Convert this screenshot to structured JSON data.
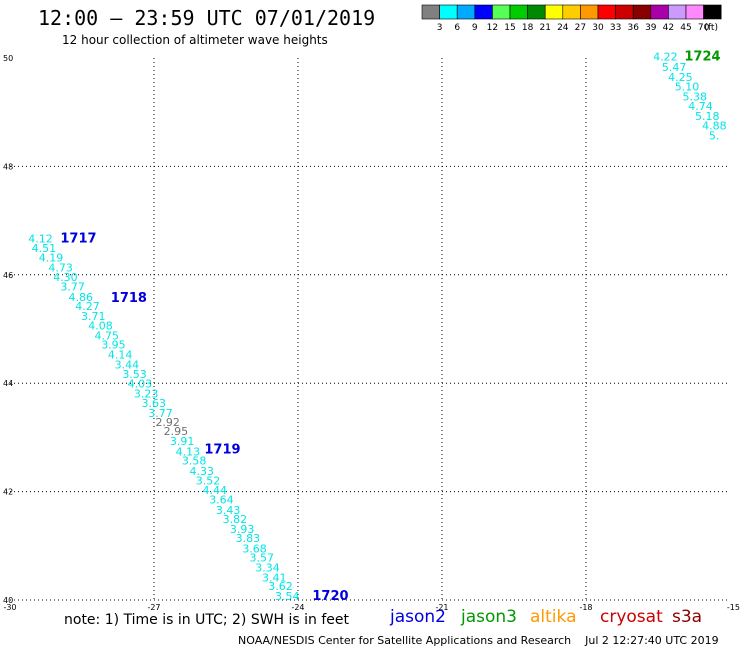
{
  "header": {
    "title": "12:00 — 23:59 UTC 07/01/2019",
    "subtitle": "12 hour collection of altimeter wave heights"
  },
  "legend": {
    "unit": "(ft)",
    "colors": [
      "#808080",
      "#00ffff",
      "#00aaff",
      "#0000ff",
      "#55ff55",
      "#00cc00",
      "#008800",
      "#ffff00",
      "#ffcc00",
      "#ff9900",
      "#ff0000",
      "#cc0000",
      "#880000",
      "#aa00aa",
      "#cc99ff",
      "#ff88ff",
      "#000000"
    ],
    "labels": [
      "3",
      "6",
      "9",
      "12",
      "15",
      "18",
      "21",
      "24",
      "27",
      "30",
      "33",
      "36",
      "39",
      "42",
      "45",
      "70"
    ]
  },
  "satellites": [
    {
      "name": "jason2",
      "color": "#0000dd"
    },
    {
      "name": "jason3",
      "color": "#009900"
    },
    {
      "name": "altika",
      "color": "#ff9900"
    },
    {
      "name": "cryosat",
      "color": "#cc0000"
    },
    {
      "name": "s3a",
      "color": "#880000"
    }
  ],
  "footer": {
    "note": "note:  1) Time is in UTC;  2) SWH is in feet",
    "credit": "NOAA/NESDIS Center for Satellite Applications and Research",
    "timestamp": "Jul  2 12:27:40 UTC 2019"
  },
  "chart_data": {
    "type": "scatter",
    "xlim": [
      -30,
      -15
    ],
    "ylim": [
      40,
      50
    ],
    "xticks": [
      -30,
      -27,
      -24,
      -21,
      -18,
      -15
    ],
    "yticks": [
      40,
      42,
      44,
      46,
      48,
      50
    ],
    "xtick_labels": [
      "-30",
      "-27",
      "-24",
      "-21",
      "-18",
      "-15"
    ],
    "ytick_labels": [
      "40",
      "42",
      "44",
      "46",
      "48",
      "50"
    ],
    "grid": true,
    "times": [
      {
        "label": "1717",
        "x": -28.95,
        "y": 46.6,
        "color": "#0000dd"
      },
      {
        "label": "1718",
        "x": -27.9,
        "y": 45.5,
        "color": "#0000dd"
      },
      {
        "label": "1719",
        "x": -25.95,
        "y": 42.7,
        "color": "#0000dd"
      },
      {
        "label": "1720",
        "x": -23.7,
        "y": 40.0,
        "color": "#0000dd"
      },
      {
        "label": "1724",
        "x": -15.95,
        "y": 49.95,
        "color": "#009900"
      }
    ],
    "series": [
      {
        "name": "jason2",
        "color": "#00e5e5",
        "points": [
          {
            "v": "4.12",
            "x": -29.62,
            "y": 46.6,
            "c": "#00e5e5"
          },
          {
            "v": "4.51",
            "x": -29.55,
            "y": 46.42,
            "c": "#00e5e5"
          },
          {
            "v": "4.19",
            "x": -29.4,
            "y": 46.25,
            "c": "#00e5e5"
          },
          {
            "v": "4.73",
            "x": -29.2,
            "y": 46.06,
            "c": "#00e5e5"
          },
          {
            "v": "4.30",
            "x": -29.1,
            "y": 45.89,
            "c": "#00e5e5"
          },
          {
            "v": "3.77",
            "x": -28.95,
            "y": 45.71,
            "c": "#00e5e5"
          },
          {
            "v": "4.86",
            "x": -28.78,
            "y": 45.52,
            "c": "#00e5e5"
          },
          {
            "v": "4.27",
            "x": -28.64,
            "y": 45.35,
            "c": "#00e5e5"
          },
          {
            "v": "3.71",
            "x": -28.52,
            "y": 45.17,
            "c": "#00e5e5"
          },
          {
            "v": "4.08",
            "x": -28.37,
            "y": 44.99,
            "c": "#00e5e5"
          },
          {
            "v": "4.75",
            "x": -28.24,
            "y": 44.81,
            "c": "#00e5e5"
          },
          {
            "v": "3.95",
            "x": -28.1,
            "y": 44.64,
            "c": "#00e5e5"
          },
          {
            "v": "4.14",
            "x": -27.96,
            "y": 44.46,
            "c": "#00e5e5"
          },
          {
            "v": "3.44",
            "x": -27.82,
            "y": 44.27,
            "c": "#00e5e5"
          },
          {
            "v": "3.53",
            "x": -27.66,
            "y": 44.1,
            "c": "#00e5e5"
          },
          {
            "v": "4.03",
            "x": -27.55,
            "y": 43.92,
            "c": "#00e5e5"
          },
          {
            "v": "3.23",
            "x": -27.42,
            "y": 43.74,
            "c": "#00e5e5"
          },
          {
            "v": "3.63",
            "x": -27.26,
            "y": 43.56,
            "c": "#00e5e5"
          },
          {
            "v": "3.77",
            "x": -27.12,
            "y": 43.38,
            "c": "#00e5e5"
          },
          {
            "v": "2.92",
            "x": -26.97,
            "y": 43.21,
            "c": "#707070"
          },
          {
            "v": "2.95",
            "x": -26.8,
            "y": 43.04,
            "c": "#707070"
          },
          {
            "v": "3.91",
            "x": -26.67,
            "y": 42.86,
            "c": "#00e5e5"
          },
          {
            "v": "4.13",
            "x": -26.55,
            "y": 42.67,
            "c": "#00e5e5"
          },
          {
            "v": "3.58",
            "x": -26.42,
            "y": 42.5,
            "c": "#00e5e5"
          },
          {
            "v": "4.33",
            "x": -26.26,
            "y": 42.31,
            "c": "#00e5e5"
          },
          {
            "v": "3.52",
            "x": -26.13,
            "y": 42.13,
            "c": "#00e5e5"
          },
          {
            "v": "4.44",
            "x": -25.99,
            "y": 41.96,
            "c": "#00e5e5"
          },
          {
            "v": "3.64",
            "x": -25.85,
            "y": 41.78,
            "c": "#00e5e5"
          },
          {
            "v": "3.43",
            "x": -25.71,
            "y": 41.59,
            "c": "#00e5e5"
          },
          {
            "v": "3.82",
            "x": -25.57,
            "y": 41.42,
            "c": "#00e5e5"
          },
          {
            "v": "3.93",
            "x": -25.42,
            "y": 41.24,
            "c": "#00e5e5"
          },
          {
            "v": "3.83",
            "x": -25.3,
            "y": 41.07,
            "c": "#00e5e5"
          },
          {
            "v": "3.68",
            "x": -25.16,
            "y": 40.88,
            "c": "#00e5e5"
          },
          {
            "v": "3.57",
            "x": -25.01,
            "y": 40.71,
            "c": "#00e5e5"
          },
          {
            "v": "3.34",
            "x": -24.89,
            "y": 40.53,
            "c": "#00e5e5"
          },
          {
            "v": "3.41",
            "x": -24.75,
            "y": 40.34,
            "c": "#00e5e5"
          },
          {
            "v": "3.62",
            "x": -24.62,
            "y": 40.18,
            "c": "#00e5e5"
          },
          {
            "v": "3.54",
            "x": -24.48,
            "y": 40.0,
            "c": "#00e5e5"
          }
        ]
      },
      {
        "name": "jason3",
        "color": "#00e5e5",
        "points": [
          {
            "v": "4.22",
            "x": -16.6,
            "y": 49.95,
            "c": "#00e5e5"
          },
          {
            "v": "5.47",
            "x": -16.42,
            "y": 49.76,
            "c": "#00e5e5"
          },
          {
            "v": "4.25",
            "x": -16.29,
            "y": 49.58,
            "c": "#00e5e5"
          },
          {
            "v": "5.10",
            "x": -16.15,
            "y": 49.4,
            "c": "#00e5e5"
          },
          {
            "v": "5.38",
            "x": -15.99,
            "y": 49.22,
            "c": "#00e5e5"
          },
          {
            "v": "4.74",
            "x": -15.87,
            "y": 49.04,
            "c": "#00e5e5"
          },
          {
            "v": "5.18",
            "x": -15.73,
            "y": 48.86,
            "c": "#00e5e5"
          },
          {
            "v": "4.88",
            "x": -15.58,
            "y": 48.68,
            "c": "#00e5e5"
          },
          {
            "v": "5.",
            "x": -15.44,
            "y": 48.5,
            "c": "#00e5e5"
          }
        ]
      }
    ]
  }
}
